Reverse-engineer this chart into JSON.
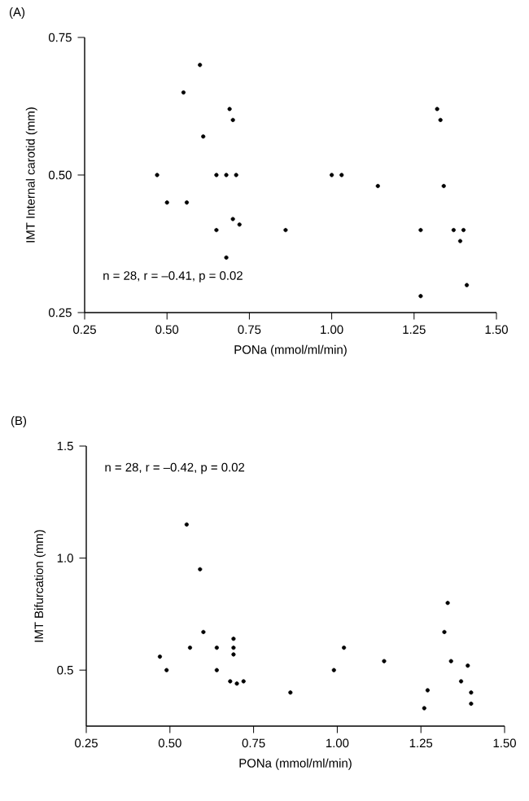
{
  "chart_data": [
    {
      "type": "scatter",
      "title": "(A)",
      "xlabel": "PONa (mmol/ml/min)",
      "ylabel": "IMT Internal carotid (mm)",
      "annotations": [
        "n = 28, r = –0.41, p = 0.02"
      ],
      "xlim": [
        0.25,
        1.5
      ],
      "ylim": [
        0.25,
        0.75
      ],
      "xticks": [
        0.25,
        {
          "value": 0.5,
          "label": "0.50"
        },
        0.75,
        {
          "value": 1.0,
          "label": "1.00"
        },
        1.25,
        {
          "value": 1.5,
          "label": "1.50"
        }
      ],
      "yticks": [
        0.25,
        {
          "value": 0.5,
          "label": "0.50"
        },
        0.75
      ],
      "marker": "circle",
      "series": [
        {
          "color": "#000000",
          "x": [
            0.47,
            0.5,
            0.55,
            0.56,
            0.6,
            0.61,
            0.65,
            0.65,
            0.68,
            0.69,
            0.7,
            0.7,
            0.71,
            0.72,
            0.68,
            0.86,
            1.0,
            1.03,
            1.14,
            1.27,
            1.27,
            1.32,
            1.33,
            1.34,
            1.37,
            1.4,
            1.39,
            1.41
          ],
          "values": [
            0.5,
            0.45,
            0.65,
            0.45,
            0.7,
            0.57,
            0.5,
            0.4,
            0.5,
            0.62,
            0.6,
            0.42,
            0.5,
            0.41,
            0.35,
            0.4,
            0.5,
            0.5,
            0.48,
            0.4,
            0.28,
            0.62,
            0.6,
            0.48,
            0.4,
            0.4,
            0.38,
            0.3
          ]
        }
      ]
    },
    {
      "type": "scatter",
      "title": "(B)",
      "xlabel": "PONa (mmol/ml/min)",
      "ylabel": "IMT Bifurcation (mm)",
      "annotations": [
        "n = 28, r = –0.42, p = 0.02"
      ],
      "xlim": [
        0.25,
        1.5
      ],
      "ylim": [
        0.25,
        1.5
      ],
      "xticks": [
        0.25,
        {
          "value": 0.5,
          "label": "0.50"
        },
        0.75,
        {
          "value": 1.0,
          "label": "1.00"
        },
        1.25,
        {
          "value": 1.5,
          "label": "1.50"
        }
      ],
      "yticks": [
        0.5,
        {
          "value": 1.0,
          "label": "1.0"
        },
        1.5
      ],
      "marker": "circle",
      "series": [
        {
          "color": "#000000",
          "x": [
            0.47,
            0.49,
            0.55,
            0.56,
            0.59,
            0.6,
            0.64,
            0.64,
            0.68,
            0.69,
            0.69,
            0.69,
            0.7,
            0.72,
            0.86,
            0.99,
            1.02,
            1.14,
            1.26,
            1.27,
            1.32,
            1.33,
            1.34,
            1.37,
            1.39,
            1.4,
            1.4
          ],
          "values": [
            0.56,
            0.5,
            1.15,
            0.6,
            0.95,
            0.67,
            0.6,
            0.5,
            0.45,
            0.64,
            0.6,
            0.57,
            0.44,
            0.45,
            0.4,
            0.5,
            0.6,
            0.54,
            0.33,
            0.41,
            0.67,
            0.8,
            0.54,
            0.45,
            0.52,
            0.35,
            0.4
          ]
        }
      ]
    }
  ]
}
